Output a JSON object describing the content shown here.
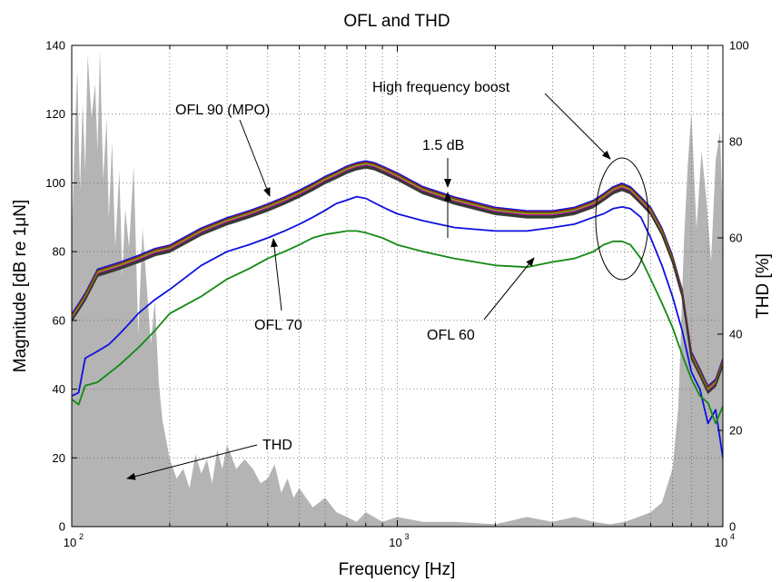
{
  "chart_data": {
    "type": "line",
    "title": "OFL and THD",
    "xlabel": "Frequency [Hz]",
    "ylabel": "Magnitude [dB re 1μN]",
    "ylabel_right": "THD [%]",
    "xscale": "log",
    "xlim": [
      100,
      10000
    ],
    "ylim": [
      0,
      140
    ],
    "ylim_right": [
      0,
      100
    ],
    "grid": true,
    "x_ticks": [
      {
        "base": "10",
        "exp": "2"
      },
      {
        "base": "10",
        "exp": "3"
      },
      {
        "base": "10",
        "exp": "4"
      }
    ],
    "y_ticks": [
      0,
      20,
      40,
      60,
      80,
      100,
      120,
      140
    ],
    "y_right_ticks": [
      0,
      20,
      40,
      60,
      80,
      100
    ],
    "colors": {
      "thd_fill": "#b4b4b4",
      "ofl70": "#1010e0",
      "ofl60": "#138a13",
      "ofl90": [
        "#2a2a2a",
        "#e01010",
        "#00b0c0",
        "#c000c0",
        "#9a9a00",
        "#1010e0",
        "#138a13",
        "#7b3f00",
        "#5a5a5a"
      ]
    },
    "series": [
      {
        "name": "OFL 60",
        "x": [
          100,
          105,
          110,
          120,
          140,
          160,
          180,
          200,
          250,
          300,
          350,
          400,
          450,
          500,
          550,
          600,
          650,
          700,
          750,
          800,
          900,
          1000,
          1200,
          1500,
          2000,
          2500,
          3000,
          3500,
          4000,
          4300,
          4600,
          4900,
          5200,
          5600,
          6000,
          6500,
          7000,
          7500,
          8000,
          8500,
          9000,
          9500,
          10000
        ],
        "values": [
          37,
          35.5,
          41,
          42,
          47,
          52,
          57,
          62,
          67,
          72,
          75,
          78,
          80,
          82,
          84,
          85,
          85.5,
          86,
          86,
          85.5,
          84,
          82,
          80,
          78,
          76,
          75.5,
          77,
          78,
          80,
          82,
          83,
          83,
          82,
          78,
          72,
          65,
          58,
          50,
          43,
          38,
          36,
          30,
          35
        ]
      },
      {
        "name": "OFL 70",
        "x": [
          100,
          105,
          110,
          120,
          130,
          140,
          150,
          160,
          180,
          200,
          250,
          300,
          350,
          400,
          450,
          500,
          550,
          600,
          650,
          700,
          750,
          800,
          900,
          1000,
          1200,
          1500,
          2000,
          2500,
          3000,
          3500,
          4000,
          4300,
          4600,
          4900,
          5200,
          5600,
          6000,
          6500,
          7000,
          7500,
          8000,
          8500,
          9000,
          9500,
          10000
        ],
        "values": [
          38,
          39,
          49,
          51,
          53,
          56,
          59,
          62,
          66,
          69,
          76,
          80,
          82,
          84,
          86,
          88,
          90,
          92,
          94,
          95,
          96,
          95.5,
          93,
          91,
          89,
          87,
          86,
          86,
          87,
          88,
          90,
          91,
          92.5,
          93,
          92.5,
          90,
          84,
          76,
          67,
          57,
          45,
          40,
          30,
          34,
          20
        ]
      },
      {
        "name": "OFL 90 (MPO)",
        "x": [
          100,
          105,
          110,
          120,
          140,
          160,
          180,
          200,
          250,
          300,
          350,
          400,
          450,
          500,
          550,
          600,
          650,
          700,
          750,
          800,
          850,
          900,
          1000,
          1200,
          1500,
          2000,
          2500,
          3000,
          3500,
          4000,
          4300,
          4600,
          4900,
          5200,
          5600,
          6000,
          6500,
          7000,
          7500,
          8000,
          8500,
          9000,
          9500,
          10000
        ],
        "values": [
          61,
          64,
          67,
          74,
          76,
          78,
          80,
          81,
          86,
          89,
          91,
          93,
          95,
          97,
          99,
          101,
          102.5,
          104,
          105,
          105.5,
          105,
          104,
          102,
          98,
          95,
          92,
          91,
          91,
          92,
          94,
          96,
          98,
          99,
          98,
          95,
          92,
          86,
          78,
          68,
          50,
          45,
          40,
          42,
          48
        ]
      },
      {
        "name": "THD",
        "axis": "right",
        "x": [
          100,
          102,
          104,
          106,
          108,
          110,
          112,
          115,
          118,
          120,
          122,
          125,
          128,
          130,
          133,
          136,
          140,
          143,
          146,
          150,
          155,
          160,
          165,
          170,
          175,
          180,
          185,
          190,
          195,
          200,
          210,
          220,
          230,
          240,
          250,
          260,
          270,
          280,
          290,
          300,
          320,
          340,
          360,
          380,
          400,
          420,
          440,
          460,
          480,
          500,
          550,
          600,
          650,
          700,
          750,
          800,
          900,
          1000,
          1200,
          1500,
          2000,
          2500,
          3000,
          3500,
          4000,
          4500,
          5000,
          5500,
          6000,
          6500,
          7000,
          7300,
          7600,
          7800,
          8000,
          8300,
          8600,
          8900,
          9200,
          9500,
          9800,
          10000
        ],
        "values": [
          60,
          80,
          95,
          70,
          88,
          74,
          98,
          85,
          92,
          78,
          99,
          72,
          85,
          64,
          80,
          58,
          74,
          52,
          66,
          58,
          75,
          40,
          62,
          50,
          38,
          47,
          30,
          22,
          18,
          14,
          10,
          12,
          8,
          15,
          11,
          14,
          9,
          16,
          12,
          17,
          12,
          14,
          12,
          9,
          10,
          13,
          7,
          10,
          6,
          8,
          4,
          6,
          3,
          2,
          1,
          3,
          1,
          2,
          1,
          1,
          0.5,
          2,
          1,
          2,
          1,
          0.5,
          1,
          2,
          3,
          5,
          12,
          25,
          60,
          75,
          86,
          62,
          78,
          68,
          55,
          76,
          82,
          64
        ]
      }
    ],
    "annotations": [
      {
        "text": "High frequency boost"
      },
      {
        "text": "OFL 90 (MPO)"
      },
      {
        "text": "1.5 dB"
      },
      {
        "text": "OFL 70"
      },
      {
        "text": "OFL 60"
      },
      {
        "text": "THD"
      }
    ]
  }
}
